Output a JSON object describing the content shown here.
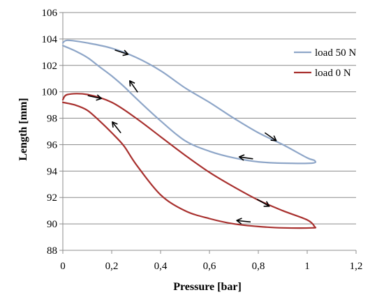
{
  "chart_data": {
    "type": "line",
    "title": "",
    "xlabel": "Pressure [bar]",
    "ylabel": "Length [mm]",
    "xlim": [
      0,
      1.2
    ],
    "ylim": [
      88,
      106
    ],
    "x_ticks": [
      "0",
      "0,2",
      "0,4",
      "0,6",
      "0,8",
      "1",
      "1,2"
    ],
    "y_ticks": [
      "88",
      "90",
      "92",
      "94",
      "96",
      "98",
      "100",
      "102",
      "104",
      "106"
    ],
    "grid": "horizontal",
    "legend_position": "right",
    "series": [
      {
        "name": "load 50 N",
        "color": "#8EA6C8",
        "x": [
          0.0,
          0.02,
          0.1,
          0.2,
          0.3,
          0.4,
          0.5,
          0.6,
          0.7,
          0.8,
          0.9,
          1.0,
          1.03,
          1.02,
          0.9,
          0.8,
          0.7,
          0.6,
          0.5,
          0.4,
          0.3,
          0.25,
          0.2,
          0.15,
          0.1,
          0.05,
          0.0
        ],
        "y": [
          103.7,
          103.9,
          103.7,
          103.3,
          102.6,
          101.6,
          100.3,
          99.2,
          98.0,
          96.9,
          96.0,
          95.0,
          94.8,
          94.6,
          94.6,
          94.7,
          95.0,
          95.5,
          96.3,
          97.8,
          99.5,
          100.4,
          101.2,
          101.9,
          102.6,
          103.1,
          103.5
        ]
      },
      {
        "name": "load 0 N",
        "color": "#A8302E",
        "x": [
          0.0,
          0.02,
          0.1,
          0.2,
          0.3,
          0.4,
          0.5,
          0.6,
          0.7,
          0.8,
          0.9,
          1.0,
          1.03,
          1.02,
          0.9,
          0.8,
          0.7,
          0.6,
          0.5,
          0.4,
          0.3,
          0.25,
          0.2,
          0.15,
          0.1,
          0.05,
          0.0
        ],
        "y": [
          99.4,
          99.8,
          99.8,
          99.2,
          98.0,
          96.6,
          95.2,
          93.9,
          92.8,
          91.8,
          91.0,
          90.3,
          89.8,
          89.7,
          89.7,
          89.8,
          90.0,
          90.4,
          91.0,
          92.2,
          94.5,
          95.9,
          96.9,
          97.8,
          98.6,
          99.0,
          99.2
        ]
      }
    ],
    "annotations": [
      {
        "symbol": "→",
        "series": "load 50 N",
        "x": 0.24,
        "y": 103.0,
        "angle": 18
      },
      {
        "symbol": "→",
        "series": "load 50 N",
        "x": 0.85,
        "y": 96.6,
        "angle": 35
      },
      {
        "symbol": "→",
        "series": "load 50 N",
        "x": 0.29,
        "y": 100.4,
        "angle": -125
      },
      {
        "symbol": "→",
        "series": "load 50 N",
        "x": 0.75,
        "y": 95.0,
        "angle": 188
      },
      {
        "symbol": "→",
        "series": "load 0 N",
        "x": 0.13,
        "y": 99.6,
        "angle": 12
      },
      {
        "symbol": "→",
        "series": "load 0 N",
        "x": 0.82,
        "y": 91.6,
        "angle": 30
      },
      {
        "symbol": "→",
        "series": "load 0 N",
        "x": 0.22,
        "y": 97.3,
        "angle": -128
      },
      {
        "symbol": "→",
        "series": "load 0 N",
        "x": 0.74,
        "y": 90.2,
        "angle": 186
      }
    ]
  }
}
